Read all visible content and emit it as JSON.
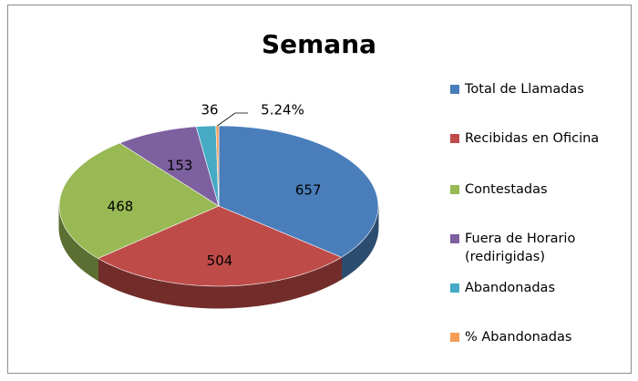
{
  "chart_data": {
    "type": "pie3d",
    "title": "Semana",
    "categories": [
      "Total de Llamadas",
      "Recibidas en Oficina",
      "Contestadas",
      "Fuera de Horario (redirigidas)",
      "Abandonadas",
      "% Abandonadas"
    ],
    "values": [
      657,
      504,
      468,
      153,
      36,
      5.24
    ],
    "value_labels": [
      "657",
      "504",
      "468",
      "153",
      "36",
      "5.24%"
    ],
    "colors": [
      "#4a7ebb",
      "#be4b48",
      "#98b954",
      "#7d60a0",
      "#46aac5",
      "#f59d56"
    ],
    "legend": "right"
  }
}
